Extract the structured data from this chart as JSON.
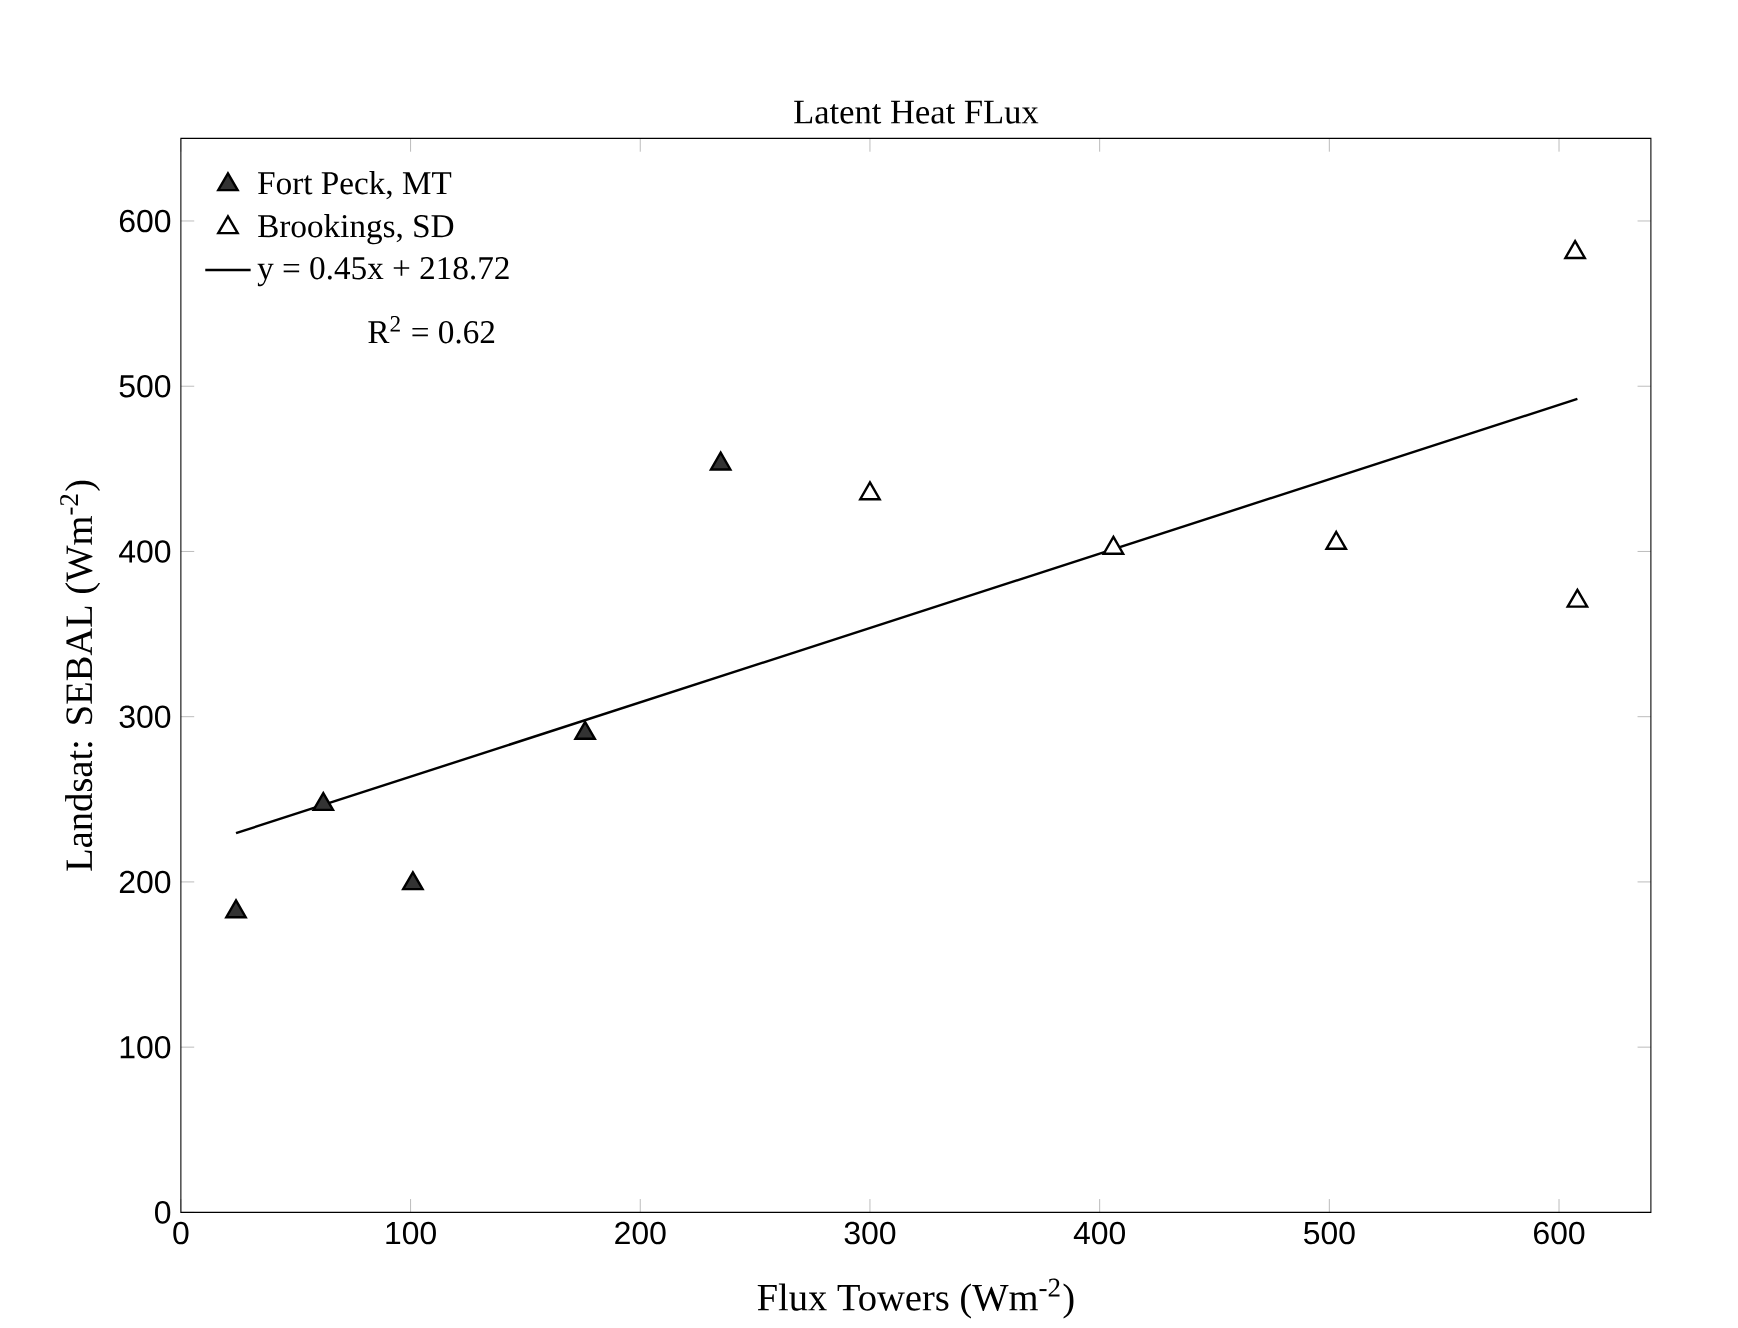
{
  "chart_data": {
    "type": "scatter",
    "title": "Latent Heat FLux",
    "xlabel": "Flux Towers (Wm$^{-2}$)",
    "ylabel": "Landsat: SEBAL (Wm$^{-2}$)",
    "xlim": [
      0,
      640
    ],
    "ylim": [
      0,
      650
    ],
    "xticks": [
      0,
      100,
      200,
      300,
      400,
      500,
      600
    ],
    "yticks": [
      0,
      100,
      200,
      300,
      400,
      500,
      600
    ],
    "marker": "triangle",
    "legend": "top left",
    "annotations": [
      "R$^{2}$ = 0.62"
    ],
    "series": [
      {
        "name": "Fort Peck, MT",
        "color": "#333333",
        "x": [
          24,
          62,
          101,
          176,
          235
        ],
        "values": [
          182,
          247,
          199,
          290,
          453
        ]
      },
      {
        "name": "Brookings, SD",
        "color": "#ffffff",
        "x": [
          300,
          406,
          503,
          607,
          608
        ],
        "values": [
          435,
          402,
          405,
          581,
          370
        ]
      },
      {
        "name": "y = 0.45x + 218.72",
        "type": "line",
        "marker": "none",
        "color": "#000000",
        "x": [
          24,
          608
        ],
        "values": [
          229.5,
          492.3
        ]
      }
    ]
  }
}
